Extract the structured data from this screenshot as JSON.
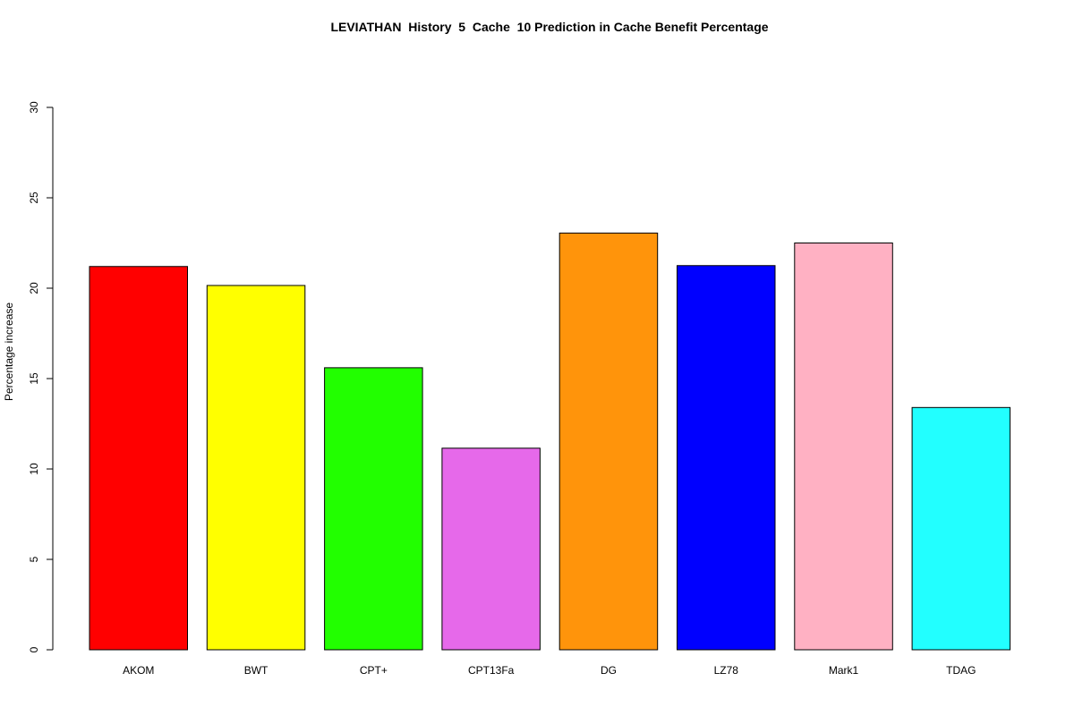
{
  "chart_data": {
    "type": "bar",
    "title": "LEVIATHAN  History  5  Cache  10 Prediction in Cache Benefit Percentage",
    "xlabel": "",
    "ylabel": "Percentage increase",
    "categories": [
      "AKOM",
      "BWT",
      "CPT+",
      "CPT13Fa",
      "DG",
      "LZ78",
      "Mark1",
      "TDAG"
    ],
    "values": [
      21.2,
      20.15,
      15.6,
      11.15,
      23.05,
      21.25,
      22.5,
      13.4
    ],
    "colors": [
      "#ff0000",
      "#ffff00",
      "#22ff00",
      "#e669ea",
      "#ff940b",
      "#0000ff",
      "#ffb1c3",
      "#22ffff"
    ],
    "ylim": [
      0,
      30
    ],
    "yticks": [
      "0",
      "5",
      "10",
      "15",
      "20",
      "25",
      "30"
    ],
    "grid": false,
    "legend": "none"
  }
}
